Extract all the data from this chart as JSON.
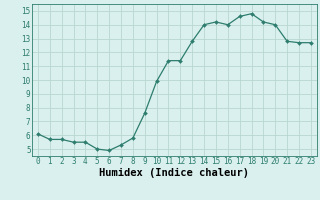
{
  "x": [
    0,
    1,
    2,
    3,
    4,
    5,
    6,
    7,
    8,
    9,
    10,
    11,
    12,
    13,
    14,
    15,
    16,
    17,
    18,
    19,
    20,
    21,
    22,
    23
  ],
  "y": [
    6.1,
    5.7,
    5.7,
    5.5,
    5.5,
    5.0,
    4.9,
    5.3,
    5.8,
    7.6,
    9.9,
    11.4,
    11.4,
    12.8,
    14.0,
    14.2,
    14.0,
    14.6,
    14.8,
    14.2,
    14.0,
    12.8,
    12.7,
    12.7
  ],
  "line_color": "#2e7d6e",
  "marker": "D",
  "marker_size": 2.0,
  "bg_color": "#d9f0ee",
  "grid_color": "#b8d8d0",
  "xlabel": "Humidex (Indice chaleur)",
  "xlim": [
    -0.5,
    23.5
  ],
  "ylim": [
    4.5,
    15.5
  ],
  "xticks": [
    0,
    1,
    2,
    3,
    4,
    5,
    6,
    7,
    8,
    9,
    10,
    11,
    12,
    13,
    14,
    15,
    16,
    17,
    18,
    19,
    20,
    21,
    22,
    23
  ],
  "yticks": [
    5,
    6,
    7,
    8,
    9,
    10,
    11,
    12,
    13,
    14,
    15
  ],
  "tick_fontsize": 5.5,
  "xlabel_fontsize": 7.5
}
